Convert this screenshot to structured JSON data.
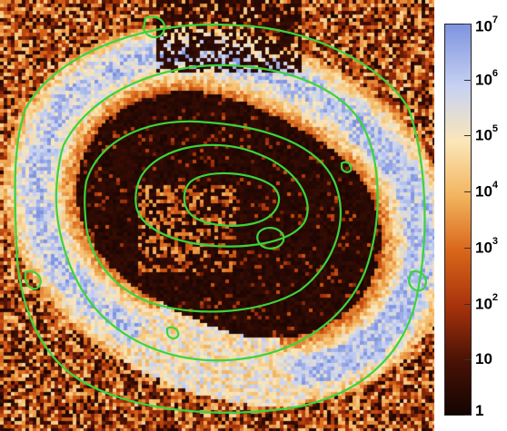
{
  "image": {
    "description_name": "thermal-intensity-map",
    "palette": {
      "black": "#140402",
      "dark_brown": "#4a1205",
      "orange": "#d9661a",
      "light_orange": "#f2b45e",
      "pale": "#fbe6b8",
      "light_blue": "#c7d2f2",
      "blue": "#7e93e0",
      "contour": "#3bd43b"
    }
  },
  "colorbar": {
    "ticks": [
      {
        "base": "10",
        "exp": "7",
        "value": 10000000
      },
      {
        "base": "10",
        "exp": "6",
        "value": 1000000
      },
      {
        "base": "10",
        "exp": "5",
        "value": 100000
      },
      {
        "base": "10",
        "exp": "4",
        "value": 10000
      },
      {
        "base": "10",
        "exp": "3",
        "value": 1000
      },
      {
        "base": "10",
        "exp": "2",
        "value": 100
      },
      {
        "base": "10",
        "exp": "",
        "value": 10
      },
      {
        "base": "1",
        "exp": "",
        "value": 1
      }
    ],
    "scale": "log",
    "range": [
      1,
      10000000
    ]
  }
}
